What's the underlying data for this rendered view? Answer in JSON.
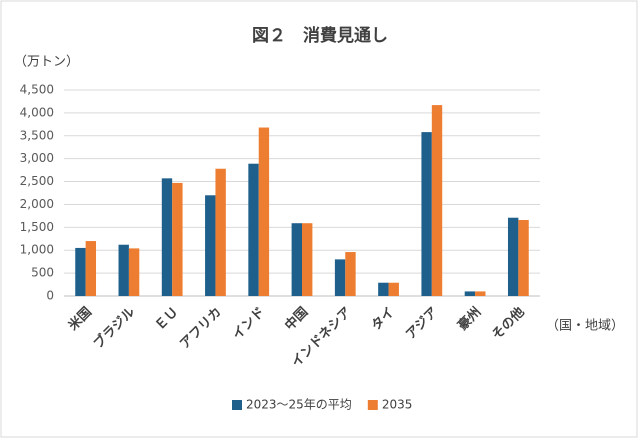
{
  "chart_data": {
    "type": "bar",
    "title": "図２　消費見通し",
    "y_axis_label": "（万トン）",
    "x_axis_label": "（国・地域）",
    "categories": [
      "米国",
      "ブラジル",
      "ＥＵ",
      "アフリカ",
      "インド",
      "中国",
      "インドネシア",
      "タイ",
      "アジア",
      "豪州",
      "その他"
    ],
    "series": [
      {
        "name": "2023～25年の平均",
        "color": "#1f5f8b",
        "values": [
          1050,
          1120,
          2570,
          2200,
          2890,
          1590,
          800,
          290,
          3580,
          100,
          1710
        ]
      },
      {
        "name": "2035",
        "color": "#ed7d31",
        "values": [
          1200,
          1040,
          2470,
          2780,
          3680,
          1590,
          960,
          290,
          4170,
          100,
          1660
        ]
      }
    ],
    "ylim": [
      0,
      4500
    ],
    "yticks": [
      0,
      500,
      {
        "value": 1000,
        "label": "1,000"
      },
      {
        "value": 1500,
        "label": "1,500"
      },
      {
        "value": 2000,
        "label": "2,000"
      },
      {
        "value": 2500,
        "label": "2,500"
      },
      {
        "value": 3000,
        "label": "3,000"
      },
      {
        "value": 3500,
        "label": "3,500"
      },
      {
        "value": 4000,
        "label": "4,000"
      },
      {
        "value": 4500,
        "label": "4,500"
      }
    ],
    "grid": true,
    "legend": "bottom"
  }
}
